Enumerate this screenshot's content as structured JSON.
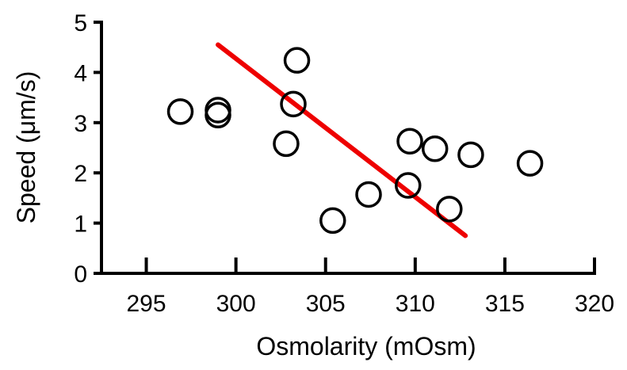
{
  "chart_data": {
    "type": "scatter",
    "title": "",
    "xlabel": "Osmolarity (mOsm)",
    "ylabel": "Speed (μm/s)",
    "xlim": [
      292.5,
      320
    ],
    "ylim": [
      0,
      5
    ],
    "xticks": [
      295,
      300,
      305,
      310,
      315,
      320
    ],
    "yticks": [
      0,
      1,
      2,
      3,
      4,
      5
    ],
    "grid": false,
    "legend": "none",
    "series": [
      {
        "marker": "open-circle",
        "color": "#000000",
        "points": [
          {
            "x": 296.9,
            "y": 3.22
          },
          {
            "x": 299.0,
            "y": 3.25
          },
          {
            "x": 299.0,
            "y": 3.15
          },
          {
            "x": 302.8,
            "y": 2.58
          },
          {
            "x": 303.2,
            "y": 3.37
          },
          {
            "x": 303.4,
            "y": 4.24
          },
          {
            "x": 305.4,
            "y": 1.05
          },
          {
            "x": 307.4,
            "y": 1.57
          },
          {
            "x": 309.6,
            "y": 1.75
          },
          {
            "x": 309.7,
            "y": 2.63
          },
          {
            "x": 311.1,
            "y": 2.48
          },
          {
            "x": 311.9,
            "y": 1.28
          },
          {
            "x": 313.1,
            "y": 2.36
          },
          {
            "x": 316.4,
            "y": 2.19
          }
        ]
      }
    ],
    "trendline": {
      "color": "#ee0000",
      "x": [
        299.0,
        312.8
      ],
      "y": [
        4.55,
        0.75
      ]
    }
  }
}
